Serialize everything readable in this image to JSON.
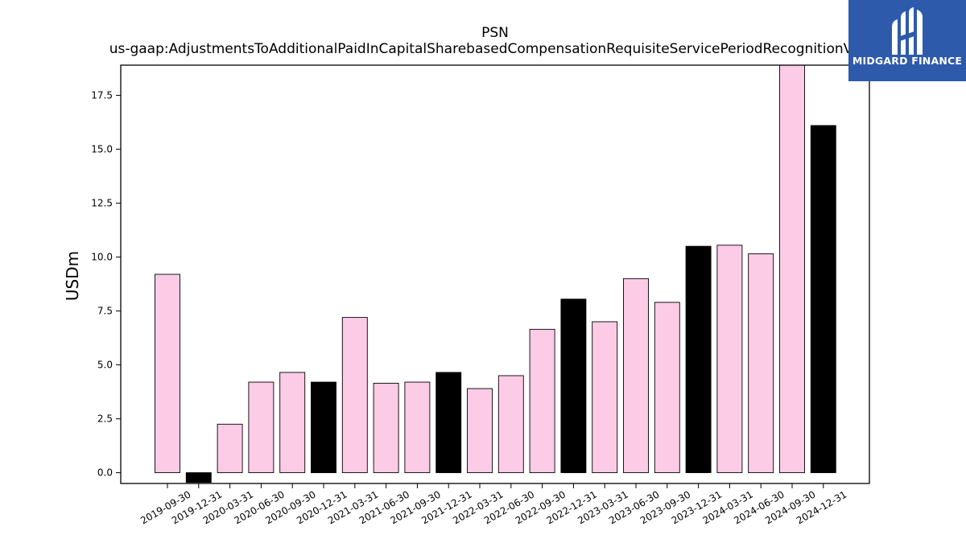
{
  "chart_data": {
    "type": "bar",
    "title": "PSN",
    "subtitle": "us-gaap:AdjustmentsToAdditionalPaidInCapitalSharebasedCompensationRequisiteServicePeriodRecognitionValue",
    "xlabel": "",
    "ylabel": "USDm",
    "ylim": [
      -0.5,
      18.9
    ],
    "yticks": [
      0.0,
      2.5,
      5.0,
      7.5,
      10.0,
      12.5,
      15.0,
      17.5
    ],
    "ytick_labels": [
      "0.0",
      "2.5",
      "5.0",
      "7.5",
      "10.0",
      "12.5",
      "15.0",
      "17.5"
    ],
    "grid": false,
    "categories": [
      "2019-09-30",
      "2019-12-31",
      "2020-03-31",
      "2020-06-30",
      "2020-09-30",
      "2020-12-31",
      "2021-03-31",
      "2021-06-30",
      "2021-09-30",
      "2021-12-31",
      "2022-03-31",
      "2022-06-30",
      "2022-09-30",
      "2022-12-31",
      "2023-03-31",
      "2023-06-30",
      "2023-09-30",
      "2023-12-31",
      "2024-03-31",
      "2024-06-30",
      "2024-09-30",
      "2024-12-31"
    ],
    "values": [
      9.2,
      -0.45,
      2.25,
      4.2,
      4.65,
      4.2,
      7.2,
      4.15,
      4.2,
      4.65,
      3.9,
      4.5,
      6.65,
      8.05,
      7.0,
      9.0,
      7.9,
      10.5,
      10.55,
      10.15,
      19.0,
      16.1
    ],
    "bar_colors": [
      "#fccbe6",
      "#000000",
      "#fccbe6",
      "#fccbe6",
      "#fccbe6",
      "#000000",
      "#fccbe6",
      "#fccbe6",
      "#fccbe6",
      "#000000",
      "#fccbe6",
      "#fccbe6",
      "#fccbe6",
      "#000000",
      "#fccbe6",
      "#fccbe6",
      "#fccbe6",
      "#000000",
      "#fccbe6",
      "#fccbe6",
      "#fccbe6",
      "#000000"
    ]
  },
  "logo": {
    "text": "MIDGARD FINANCE",
    "background": "#2d5aab",
    "icon": "midgard-logo-icon"
  }
}
